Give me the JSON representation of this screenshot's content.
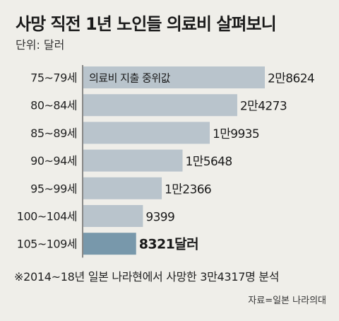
{
  "title": "사망 직전 1년 노인들 의료비 살펴보니",
  "unit": "단위: 달러",
  "footnote": "※2014~18년 일본 나라현에서 사망한 3만4317명 분석",
  "source": "자료=일본 나라의대",
  "colors": {
    "bar": "#b9c4cc",
    "highlight": "#7898ab",
    "axis": "#222222",
    "background": "#efeee9"
  },
  "chart_data": {
    "type": "bar",
    "orientation": "horizontal",
    "series_label": "의료비 지출 중위값",
    "categories": [
      "75~79세",
      "80~84세",
      "85~89세",
      "90~94세",
      "95~99세",
      "100~104세",
      "105~109세"
    ],
    "values": [
      28624,
      24273,
      19935,
      15648,
      12366,
      9399,
      8321
    ],
    "value_labels": [
      "2만8624",
      "2만4273",
      "1만9935",
      "1만5648",
      "1만2366",
      "9399",
      "8321달러"
    ],
    "highlight_index": 6,
    "xlim": [
      0,
      28624
    ]
  }
}
